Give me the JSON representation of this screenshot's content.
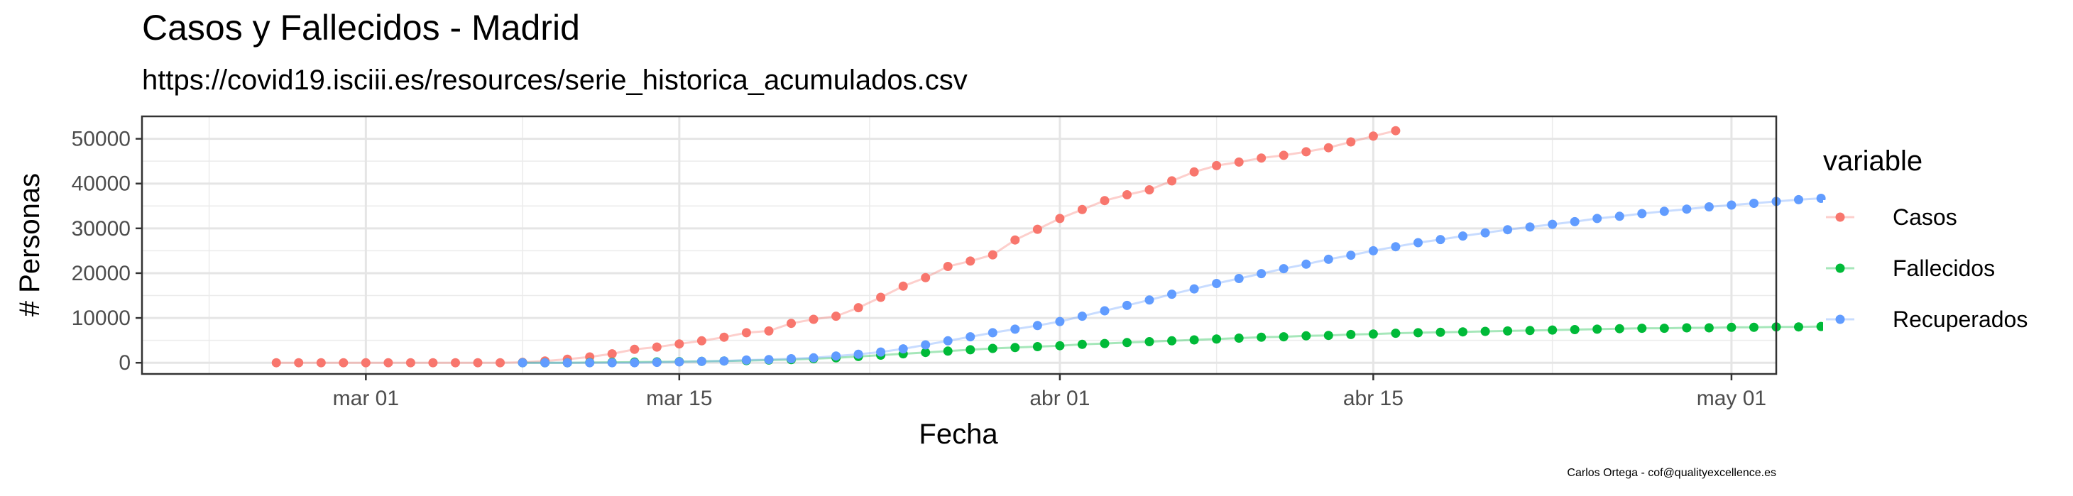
{
  "chart_data": {
    "type": "scatter",
    "title": "Casos y Fallecidos - Madrid",
    "subtitle": "https://covid19.isciii.es/resources/serie_historica_acumulados.csv",
    "xlabel": "Fecha",
    "ylabel": "# Personas",
    "caption": "Carlos Ortega - cof@qualityexcellence.es",
    "legend_title": "variable",
    "legend_position": "right",
    "grid": true,
    "xlim": [
      "2020-02-20",
      "2020-05-03"
    ],
    "ylim": [
      -2500,
      55000
    ],
    "x_ticks": [
      {
        "date": "2020-03-01",
        "label": "mar 01"
      },
      {
        "date": "2020-03-15",
        "label": "mar 15"
      },
      {
        "date": "2020-04-01",
        "label": "abr 01"
      },
      {
        "date": "2020-04-15",
        "label": "abr 15"
      },
      {
        "date": "2020-05-01",
        "label": "may 01"
      }
    ],
    "y_ticks": [
      0,
      10000,
      20000,
      30000,
      40000,
      50000
    ],
    "series": [
      {
        "name": "Casos",
        "color": "#F8766D",
        "start_date": "2020-02-26",
        "values": [
          0,
          0,
          0,
          0,
          0,
          0,
          0,
          0,
          0,
          0,
          0,
          100,
          400,
          800,
          1300,
          2000,
          3000,
          3500,
          4200,
          4900,
          5700,
          6700,
          7100,
          8800,
          9700,
          10400,
          12300,
          14600,
          17100,
          19000,
          21500,
          22700,
          24100,
          27400,
          29800,
          32200,
          34200,
          36200,
          37500,
          38600,
          40600,
          42600,
          44000,
          44800,
          45700,
          46300,
          47100,
          48000,
          49300,
          50600,
          51800
        ]
      },
      {
        "name": "Fallecidos",
        "color": "#00BA38",
        "start_date": "2020-03-08",
        "values": [
          0,
          0,
          0,
          50,
          100,
          150,
          200,
          250,
          300,
          400,
          500,
          600,
          700,
          900,
          1100,
          1400,
          1700,
          2000,
          2300,
          2600,
          2900,
          3200,
          3400,
          3600,
          3800,
          4100,
          4300,
          4500,
          4700,
          4900,
          5100,
          5300,
          5500,
          5700,
          5800,
          6000,
          6100,
          6300,
          6400,
          6600,
          6700,
          6800,
          6900,
          7000,
          7100,
          7200,
          7300,
          7400,
          7500,
          7600,
          7700,
          7700,
          7800,
          7800,
          7900,
          7900,
          8000,
          8000,
          8100
        ]
      },
      {
        "name": "Recuperados",
        "color": "#619CFF",
        "start_date": "2020-03-08",
        "values": [
          0,
          0,
          0,
          0,
          0,
          0,
          100,
          200,
          300,
          400,
          600,
          700,
          900,
          1100,
          1500,
          1900,
          2400,
          3100,
          4000,
          4900,
          5800,
          6700,
          7500,
          8300,
          9200,
          10400,
          11600,
          12800,
          14000,
          15300,
          16500,
          17700,
          18800,
          19900,
          21000,
          22000,
          23100,
          24000,
          25000,
          25900,
          26800,
          27500,
          28300,
          29000,
          29700,
          30300,
          30900,
          31500,
          32200,
          32700,
          33300,
          33800,
          34300,
          34800,
          35200,
          35600,
          36000,
          36400,
          36700
        ]
      }
    ]
  }
}
